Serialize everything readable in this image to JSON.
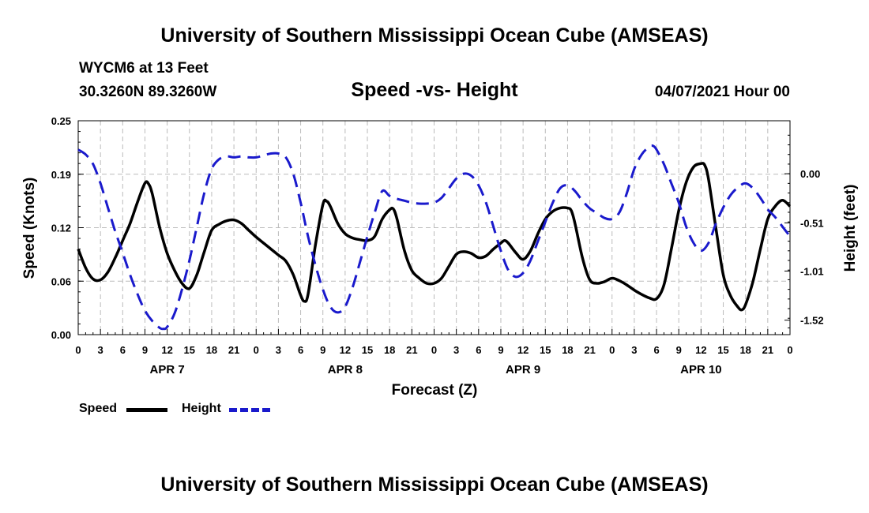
{
  "header": {
    "title": "University of Southern Mississippi Ocean Cube (AMSEAS)",
    "station": "WYCM6 at 13 Feet",
    "coords": "30.3260N  89.3260W",
    "subtitle": "Speed -vs- Height",
    "date": "04/07/2021 Hour 00"
  },
  "footer": {
    "title": "University of Southern Mississippi Ocean Cube (AMSEAS)"
  },
  "legend": {
    "speed_label": "Speed",
    "height_label": "Height"
  },
  "colors": {
    "speed": "#000000",
    "height": "#1a1acc",
    "grid": "#bbbbbb"
  },
  "chart_data": {
    "type": "line",
    "title": "Speed -vs- Height",
    "xlabel": "Forecast (Z)",
    "ylabel": "Speed (Knots)",
    "y2label": "Height (feet)",
    "xlim": [
      0,
      96
    ],
    "ylim": [
      0,
      0.25
    ],
    "y2lim": [
      -1.67,
      0.55
    ],
    "y_ticks": [
      {
        "value": 0.0,
        "label": "0.00"
      },
      {
        "value": 0.0625,
        "label": "0.06"
      },
      {
        "value": 0.125,
        "label": "0.12"
      },
      {
        "value": 0.1875,
        "label": "0.19"
      },
      {
        "value": 0.25,
        "label": "0.25"
      }
    ],
    "y2_ticks": [
      {
        "value": 0.0,
        "label": "0.00"
      },
      {
        "value": -0.51,
        "label": "-0.51"
      },
      {
        "value": -1.01,
        "label": "-1.01"
      },
      {
        "value": -1.52,
        "label": "-1.52"
      }
    ],
    "x_ticks": [
      {
        "value": 0,
        "label": "0"
      },
      {
        "value": 3,
        "label": "3"
      },
      {
        "value": 6,
        "label": "6"
      },
      {
        "value": 9,
        "label": "9"
      },
      {
        "value": 12,
        "label": "12"
      },
      {
        "value": 15,
        "label": "15"
      },
      {
        "value": 18,
        "label": "18"
      },
      {
        "value": 21,
        "label": "21"
      },
      {
        "value": 24,
        "label": "0"
      },
      {
        "value": 27,
        "label": "3"
      },
      {
        "value": 30,
        "label": "6"
      },
      {
        "value": 33,
        "label": "9"
      },
      {
        "value": 36,
        "label": "12"
      },
      {
        "value": 39,
        "label": "15"
      },
      {
        "value": 42,
        "label": "18"
      },
      {
        "value": 45,
        "label": "21"
      },
      {
        "value": 48,
        "label": "0"
      },
      {
        "value": 51,
        "label": "3"
      },
      {
        "value": 54,
        "label": "6"
      },
      {
        "value": 57,
        "label": "9"
      },
      {
        "value": 60,
        "label": "12"
      },
      {
        "value": 63,
        "label": "15"
      },
      {
        "value": 66,
        "label": "18"
      },
      {
        "value": 69,
        "label": "21"
      },
      {
        "value": 72,
        "label": "0"
      },
      {
        "value": 75,
        "label": "3"
      },
      {
        "value": 78,
        "label": "6"
      },
      {
        "value": 81,
        "label": "9"
      },
      {
        "value": 84,
        "label": "12"
      },
      {
        "value": 87,
        "label": "15"
      },
      {
        "value": 90,
        "label": "18"
      },
      {
        "value": 93,
        "label": "21"
      },
      {
        "value": 96,
        "label": "0"
      }
    ],
    "day_labels": [
      {
        "value": 12,
        "label": "APR 7"
      },
      {
        "value": 36,
        "label": "APR 8"
      },
      {
        "value": 60,
        "label": "APR 9"
      },
      {
        "value": 84,
        "label": "APR 10"
      }
    ],
    "series": [
      {
        "name": "Speed",
        "axis": "left",
        "style": "solid",
        "points": [
          [
            0,
            0.1
          ],
          [
            1,
            0.078
          ],
          [
            2,
            0.065
          ],
          [
            3,
            0.064
          ],
          [
            4,
            0.073
          ],
          [
            5,
            0.09
          ],
          [
            6,
            0.11
          ],
          [
            7,
            0.13
          ],
          [
            8,
            0.155
          ],
          [
            9,
            0.177
          ],
          [
            9.5,
            0.176
          ],
          [
            10,
            0.164
          ],
          [
            11,
            0.125
          ],
          [
            12,
            0.095
          ],
          [
            13,
            0.075
          ],
          [
            14,
            0.06
          ],
          [
            15,
            0.054
          ],
          [
            16,
            0.07
          ],
          [
            17,
            0.097
          ],
          [
            18,
            0.122
          ],
          [
            19,
            0.129
          ],
          [
            20,
            0.133
          ],
          [
            21,
            0.134
          ],
          [
            22,
            0.13
          ],
          [
            23,
            0.122
          ],
          [
            24,
            0.114
          ],
          [
            25,
            0.107
          ],
          [
            26,
            0.1
          ],
          [
            27,
            0.093
          ],
          [
            28,
            0.086
          ],
          [
            29,
            0.07
          ],
          [
            30,
            0.046
          ],
          [
            30.5,
            0.039
          ],
          [
            31,
            0.047
          ],
          [
            32,
            0.105
          ],
          [
            33,
            0.152
          ],
          [
            33.5,
            0.156
          ],
          [
            34,
            0.15
          ],
          [
            35,
            0.13
          ],
          [
            36,
            0.118
          ],
          [
            37,
            0.113
          ],
          [
            38,
            0.111
          ],
          [
            39,
            0.11
          ],
          [
            40,
            0.115
          ],
          [
            41,
            0.135
          ],
          [
            42,
            0.146
          ],
          [
            42.5,
            0.147
          ],
          [
            43,
            0.135
          ],
          [
            44,
            0.098
          ],
          [
            45,
            0.075
          ],
          [
            46,
            0.066
          ],
          [
            47,
            0.06
          ],
          [
            48,
            0.06
          ],
          [
            49,
            0.066
          ],
          [
            50,
            0.08
          ],
          [
            51,
            0.094
          ],
          [
            52,
            0.097
          ],
          [
            53,
            0.095
          ],
          [
            54,
            0.09
          ],
          [
            55,
            0.092
          ],
          [
            56,
            0.1
          ],
          [
            57,
            0.107
          ],
          [
            57.5,
            0.11
          ],
          [
            58,
            0.107
          ],
          [
            59,
            0.096
          ],
          [
            60,
            0.088
          ],
          [
            61,
            0.098
          ],
          [
            62,
            0.118
          ],
          [
            63,
            0.135
          ],
          [
            64,
            0.144
          ],
          [
            65,
            0.148
          ],
          [
            66,
            0.148
          ],
          [
            66.5,
            0.145
          ],
          [
            67,
            0.13
          ],
          [
            68,
            0.09
          ],
          [
            69,
            0.064
          ],
          [
            70,
            0.06
          ],
          [
            71,
            0.062
          ],
          [
            72,
            0.066
          ],
          [
            73,
            0.063
          ],
          [
            74,
            0.058
          ],
          [
            75,
            0.052
          ],
          [
            76,
            0.047
          ],
          [
            77,
            0.043
          ],
          [
            78,
            0.042
          ],
          [
            79,
            0.058
          ],
          [
            80,
            0.1
          ],
          [
            81,
            0.145
          ],
          [
            82,
            0.178
          ],
          [
            83,
            0.196
          ],
          [
            84,
            0.2
          ],
          [
            84.5,
            0.198
          ],
          [
            85,
            0.182
          ],
          [
            86,
            0.125
          ],
          [
            87,
            0.07
          ],
          [
            88,
            0.045
          ],
          [
            89,
            0.032
          ],
          [
            89.5,
            0.029
          ],
          [
            90,
            0.035
          ],
          [
            91,
            0.062
          ],
          [
            92,
            0.1
          ],
          [
            93,
            0.135
          ],
          [
            94,
            0.15
          ],
          [
            95,
            0.157
          ],
          [
            96,
            0.15
          ]
        ]
      },
      {
        "name": "Height",
        "axis": "right",
        "style": "dashed",
        "points": [
          [
            0,
            0.25
          ],
          [
            1,
            0.2
          ],
          [
            2,
            0.1
          ],
          [
            3,
            -0.1
          ],
          [
            4,
            -0.35
          ],
          [
            5,
            -0.6
          ],
          [
            6,
            -0.82
          ],
          [
            7,
            -1.05
          ],
          [
            8,
            -1.25
          ],
          [
            9,
            -1.42
          ],
          [
            10,
            -1.53
          ],
          [
            11,
            -1.6
          ],
          [
            11.5,
            -1.61
          ],
          [
            12,
            -1.59
          ],
          [
            13,
            -1.45
          ],
          [
            14,
            -1.2
          ],
          [
            15,
            -0.9
          ],
          [
            16,
            -0.55
          ],
          [
            17,
            -0.2
          ],
          [
            18,
            0.05
          ],
          [
            19,
            0.15
          ],
          [
            20,
            0.18
          ],
          [
            21,
            0.17
          ],
          [
            22,
            0.18
          ],
          [
            23,
            0.17
          ],
          [
            24,
            0.17
          ],
          [
            25,
            0.19
          ],
          [
            26,
            0.21
          ],
          [
            27,
            0.21
          ],
          [
            28,
            0.17
          ],
          [
            29,
            0.0
          ],
          [
            30,
            -0.3
          ],
          [
            31,
            -0.65
          ],
          [
            32,
            -0.95
          ],
          [
            33,
            -1.2
          ],
          [
            34,
            -1.38
          ],
          [
            35,
            -1.44
          ],
          [
            36,
            -1.38
          ],
          [
            37,
            -1.18
          ],
          [
            38,
            -0.92
          ],
          [
            39,
            -0.65
          ],
          [
            40,
            -0.4
          ],
          [
            41,
            -0.18
          ],
          [
            42,
            -0.23
          ],
          [
            43,
            -0.26
          ],
          [
            44,
            -0.28
          ],
          [
            45,
            -0.3
          ],
          [
            46,
            -0.31
          ],
          [
            47,
            -0.31
          ],
          [
            48,
            -0.3
          ],
          [
            49,
            -0.25
          ],
          [
            50,
            -0.15
          ],
          [
            51,
            -0.05
          ],
          [
            52,
            0.0
          ],
          [
            53,
            -0.02
          ],
          [
            54,
            -0.12
          ],
          [
            55,
            -0.3
          ],
          [
            56,
            -0.55
          ],
          [
            57,
            -0.8
          ],
          [
            58,
            -1.0
          ],
          [
            59,
            -1.07
          ],
          [
            60,
            -1.03
          ],
          [
            61,
            -0.9
          ],
          [
            62,
            -0.7
          ],
          [
            63,
            -0.5
          ],
          [
            64,
            -0.3
          ],
          [
            65,
            -0.15
          ],
          [
            66,
            -0.12
          ],
          [
            67,
            -0.18
          ],
          [
            68,
            -0.28
          ],
          [
            69,
            -0.36
          ],
          [
            70,
            -0.41
          ],
          [
            71,
            -0.46
          ],
          [
            72,
            -0.47
          ],
          [
            73,
            -0.4
          ],
          [
            74,
            -0.2
          ],
          [
            75,
            0.05
          ],
          [
            76,
            0.2
          ],
          [
            77,
            0.28
          ],
          [
            77.5,
            0.29
          ],
          [
            78,
            0.25
          ],
          [
            79,
            0.1
          ],
          [
            80,
            -0.1
          ],
          [
            81,
            -0.3
          ],
          [
            82,
            -0.55
          ],
          [
            83,
            -0.72
          ],
          [
            84,
            -0.8
          ],
          [
            85,
            -0.72
          ],
          [
            86,
            -0.52
          ],
          [
            87,
            -0.35
          ],
          [
            88,
            -0.22
          ],
          [
            89,
            -0.14
          ],
          [
            90,
            -0.1
          ],
          [
            91,
            -0.15
          ],
          [
            92,
            -0.25
          ],
          [
            93,
            -0.37
          ],
          [
            94,
            -0.45
          ],
          [
            95,
            -0.55
          ],
          [
            96,
            -0.65
          ]
        ]
      }
    ]
  }
}
